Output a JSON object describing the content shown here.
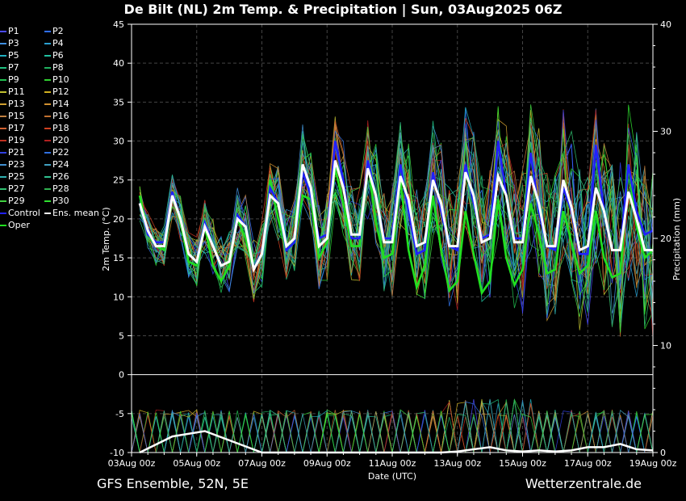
{
  "title": "De Bilt  (NL)  2m Temp. & Precipitation | Sun, 03Aug2025 06Z",
  "footer": {
    "left": "GFS Ensemble, 52N, 5E",
    "right": "Wetterzentrale.de"
  },
  "chart_data": {
    "type": "line",
    "xlabel": "Date (UTC)",
    "ylabel_left": "2m Temp. (°C)",
    "ylabel_right": "Precipitation (mm)",
    "ylim_left": [
      -10,
      45
    ],
    "ylim_right": [
      0,
      40
    ],
    "yticks_left": [
      "45",
      "40",
      "35",
      "30",
      "25",
      "20",
      "15",
      "10",
      "5",
      "0",
      "-5",
      "-10"
    ],
    "yticks_right": [
      "40",
      "30",
      "20",
      "10",
      "0"
    ],
    "xticks": [
      "03Aug 00z",
      "05Aug 00z",
      "07Aug 00z",
      "09Aug 00z",
      "11Aug 00z",
      "13Aug 00z",
      "15Aug 00z",
      "17Aug 00z",
      "19Aug 00z"
    ],
    "x_start": "03Aug 00z",
    "x_end": "19Aug 00z",
    "grid": true,
    "legend_position": "left",
    "legend": [
      {
        "name": "P1",
        "color": "#4a4aff"
      },
      {
        "name": "P2",
        "color": "#2f6fff"
      },
      {
        "name": "P3",
        "color": "#3f8fe0"
      },
      {
        "name": "P4",
        "color": "#2aa0d0"
      },
      {
        "name": "P5",
        "color": "#20b0c0"
      },
      {
        "name": "P6",
        "color": "#20c0a0"
      },
      {
        "name": "P7",
        "color": "#20c080"
      },
      {
        "name": "P8",
        "color": "#20b060"
      },
      {
        "name": "P9",
        "color": "#20c050"
      },
      {
        "name": "P10",
        "color": "#30d030"
      },
      {
        "name": "P11",
        "color": "#c0c030"
      },
      {
        "name": "P12",
        "color": "#d0b020"
      },
      {
        "name": "P13",
        "color": "#d0a030"
      },
      {
        "name": "P14",
        "color": "#d09030"
      },
      {
        "name": "P15",
        "color": "#c08040"
      },
      {
        "name": "P16",
        "color": "#c07030"
      },
      {
        "name": "P17",
        "color": "#d06030"
      },
      {
        "name": "P18",
        "color": "#d04020"
      },
      {
        "name": "P19",
        "color": "#c03020"
      },
      {
        "name": "P20",
        "color": "#b02020"
      },
      {
        "name": "P21",
        "color": "#3040e0"
      },
      {
        "name": "P22",
        "color": "#3070e0"
      },
      {
        "name": "P23",
        "color": "#4090d0"
      },
      {
        "name": "P24",
        "color": "#40a0c0"
      },
      {
        "name": "P25",
        "color": "#30b0b0"
      },
      {
        "name": "P26",
        "color": "#30c090"
      },
      {
        "name": "P27",
        "color": "#30c070"
      },
      {
        "name": "P28",
        "color": "#30b050"
      },
      {
        "name": "P29",
        "color": "#40d040"
      },
      {
        "name": "P30",
        "color": "#30e030"
      },
      {
        "name": "Control",
        "color": "#2020ff"
      },
      {
        "name": "Ens. mean",
        "color": "#ffffff"
      },
      {
        "name": "Oper",
        "color": "#20e020"
      }
    ],
    "series": [
      {
        "name": "Ens. mean",
        "color": "#ffffff",
        "x_days": [
          0.25,
          0.5,
          0.75,
          1,
          1.25,
          1.5,
          1.75,
          2,
          2.25,
          2.5,
          2.75,
          3,
          3.25,
          3.5,
          3.75,
          4,
          4.25,
          4.5,
          4.75,
          5,
          5.25,
          5.5,
          5.75,
          6,
          6.25,
          6.5,
          6.75,
          7,
          7.25,
          7.5,
          7.75,
          8,
          8.25,
          8.5,
          8.75,
          9,
          9.25,
          9.5,
          9.75,
          10,
          10.25,
          10.5,
          10.75,
          11,
          11.25,
          11.5,
          11.75,
          12,
          12.25,
          12.5,
          12.75,
          13,
          13.25,
          13.5,
          13.75,
          14,
          14.25,
          14.5,
          14.75,
          15,
          15.25,
          15.5,
          15.75,
          16
        ],
        "temp": [
          22,
          18.5,
          16.5,
          16.5,
          23,
          20,
          15.5,
          14.5,
          19,
          16.5,
          14,
          14.5,
          20,
          19,
          13.5,
          15.5,
          23,
          22,
          16.5,
          17.5,
          27,
          24,
          16.5,
          17.5,
          27.5,
          24,
          18,
          18,
          26.5,
          23,
          17,
          17,
          25.5,
          22.5,
          16.5,
          17,
          25,
          22,
          16.5,
          16.5,
          26,
          23,
          17,
          17.5,
          25.5,
          23,
          17,
          17,
          25.5,
          22,
          16.5,
          16.5,
          25,
          21.5,
          16,
          16.5,
          24,
          21,
          16,
          16,
          23.5,
          20,
          16,
          16
        ]
      },
      {
        "name": "Control",
        "color": "#2020ff",
        "x_days": [
          0.25,
          0.5,
          0.75,
          1,
          1.25,
          1.5,
          1.75,
          2,
          2.25,
          2.5,
          2.75,
          3,
          3.25,
          3.5,
          3.75,
          4,
          4.25,
          4.5,
          4.75,
          5,
          5.25,
          5.5,
          5.75,
          6,
          6.25,
          6.5,
          6.75,
          7,
          7.25,
          7.5,
          7.75,
          8,
          8.25,
          8.5,
          8.75,
          9,
          9.25,
          9.5,
          9.75,
          10,
          10.25,
          10.5,
          10.75,
          11,
          11.25,
          11.5,
          11.75,
          12,
          12.25,
          12.5,
          12.75,
          13,
          13.25,
          13.5,
          13.75,
          14,
          14.25,
          14.5,
          14.75,
          15,
          15.25,
          15.5,
          15.75,
          16
        ],
        "temp": [
          22,
          18,
          17,
          17,
          23.5,
          20,
          15.5,
          14.5,
          19.5,
          16.5,
          14,
          14.5,
          20.5,
          19,
          13.5,
          15.5,
          24,
          22,
          16,
          17,
          26,
          23,
          17.5,
          18,
          30,
          25,
          17.5,
          17.5,
          27.5,
          23,
          17.5,
          17.5,
          27,
          21,
          15.5,
          16,
          26,
          21,
          16.5,
          16,
          27,
          22,
          17.5,
          18,
          30,
          23,
          17.5,
          17.5,
          28.5,
          21,
          16.5,
          16,
          24,
          21,
          15.5,
          15.5,
          29.5,
          21,
          16,
          16,
          27,
          21,
          18,
          18.5
        ]
      },
      {
        "name": "Oper",
        "color": "#20e020",
        "x_days": [
          0.25,
          0.5,
          0.75,
          1,
          1.25,
          1.5,
          1.75,
          2,
          2.25,
          2.5,
          2.75,
          3,
          3.25,
          3.5,
          3.75,
          4,
          4.25,
          4.5,
          4.75,
          5,
          5.25,
          5.5,
          5.75,
          6,
          6.25,
          6.5,
          6.75,
          7,
          7.25,
          7.5,
          7.75,
          8,
          8.25,
          8.5,
          8.75,
          9,
          9.25,
          9.5,
          9.75,
          10,
          10.25,
          10.5,
          10.75,
          11,
          11.25,
          11.5,
          11.75,
          12,
          12.25,
          12.5,
          12.75,
          13,
          13.25,
          13.5,
          13.75,
          14,
          14.25,
          14.5,
          14.75,
          15,
          15.25,
          15.5,
          15.75,
          16
        ],
        "temp": [
          23,
          18,
          16.5,
          16,
          23.5,
          19.5,
          14.5,
          14,
          19,
          14,
          12,
          14,
          20,
          17.5,
          13.5,
          15.5,
          25,
          20,
          16,
          17,
          23,
          22.5,
          15,
          17,
          26.5,
          22,
          16.5,
          16.5,
          27.5,
          19.5,
          15,
          15.5,
          25,
          16,
          11.2,
          14,
          23,
          16,
          10.8,
          12,
          21,
          15.5,
          10.5,
          12,
          22.5,
          15,
          11.5,
          13.5,
          22,
          18,
          13,
          13.5,
          21,
          17,
          13,
          14,
          21,
          15,
          12.5,
          13,
          27,
          19,
          15,
          16
        ]
      }
    ],
    "precip_mean": {
      "name": "Ens. mean",
      "x_days": [
        0.25,
        1.25,
        2.25,
        4,
        8.5,
        9,
        9.5,
        10,
        10.5,
        11,
        11.5,
        12,
        12.5,
        13,
        13.5,
        14,
        14.5,
        15,
        15.5,
        16
      ],
      "mm": [
        0,
        1.5,
        2,
        0,
        0,
        0,
        0,
        0.1,
        0.3,
        0.5,
        0.2,
        0.1,
        0.2,
        0.1,
        0.2,
        0.5,
        0.5,
        0.8,
        0.3,
        0.2
      ]
    }
  }
}
